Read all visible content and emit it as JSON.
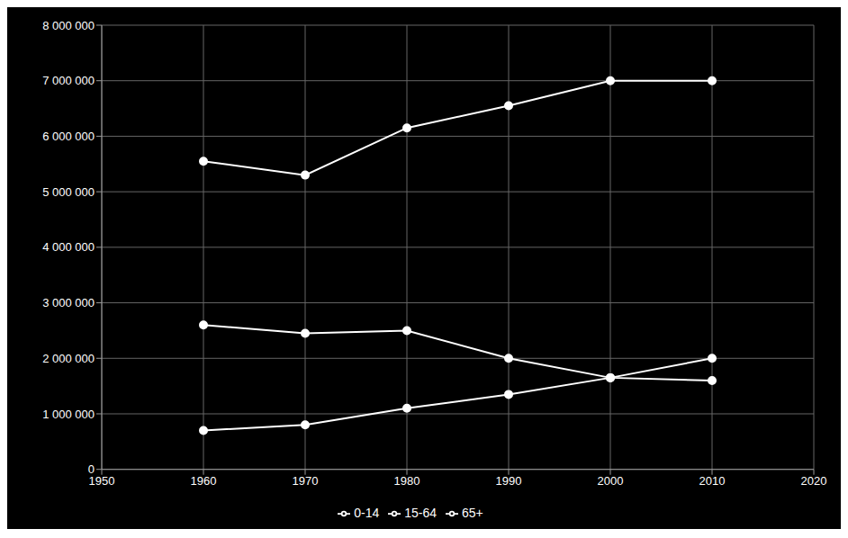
{
  "chart_data": {
    "type": "line",
    "x": [
      1960,
      1970,
      1980,
      1990,
      2000,
      2010
    ],
    "series": [
      {
        "name": "0-14",
        "values": [
          2600000,
          2450000,
          2500000,
          2000000,
          1650000,
          1600000
        ]
      },
      {
        "name": "15-64",
        "values": [
          5550000,
          5300000,
          6150000,
          6550000,
          7000000,
          7000000
        ]
      },
      {
        "name": "65+",
        "values": [
          700000,
          800000,
          1100000,
          1350000,
          1650000,
          2000000
        ]
      }
    ],
    "color": "#ffffff",
    "marker": "circle",
    "xlim": [
      1950,
      2020
    ],
    "xticks": [
      1950,
      1960,
      1970,
      1980,
      1990,
      2000,
      2010,
      2020
    ],
    "ylim": [
      0,
      8000000
    ],
    "yticks": [
      0,
      {
        "value": 1000000,
        "label": "1 000 000"
      },
      {
        "value": 2000000,
        "label": "2 000 000"
      },
      {
        "value": 3000000,
        "label": "3 000 000"
      },
      {
        "value": 4000000,
        "label": "4 000 000"
      },
      {
        "value": 5000000,
        "label": "5 000 000"
      },
      {
        "value": 6000000,
        "label": "6 000 000"
      },
      {
        "value": 7000000,
        "label": "7 000 000"
      },
      {
        "value": 8000000,
        "label": "8 000 000"
      }
    ],
    "grid": true,
    "legend": "bottom"
  }
}
